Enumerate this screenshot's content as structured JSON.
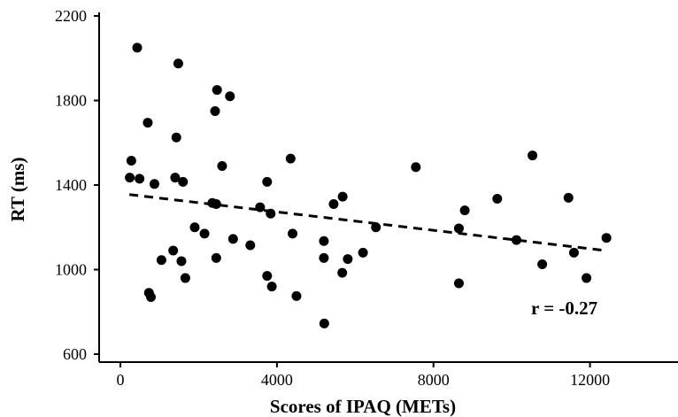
{
  "chart_data": {
    "type": "scatter",
    "title": "",
    "xlabel": "Scores of IPAQ (METs)",
    "ylabel": "RT (ms)",
    "xlim": [
      0,
      14000
    ],
    "ylim": [
      600,
      2200
    ],
    "xticks": [
      0,
      4000,
      8000,
      12000
    ],
    "xtick_labels": [
      "0",
      "4000",
      "8000",
      "12000"
    ],
    "yticks": [
      600,
      1000,
      1400,
      1800,
      2200
    ],
    "ytick_labels": [
      "600",
      "1000",
      "1400",
      "1800",
      "2200"
    ],
    "grid": false,
    "legend": "none",
    "point_color": "#000000",
    "series": [
      {
        "points": [
          [
            280,
            1515
          ],
          [
            240,
            1435
          ],
          [
            490,
            1430
          ],
          [
            870,
            1405
          ],
          [
            430,
            2050
          ],
          [
            700,
            1695
          ],
          [
            730,
            890
          ],
          [
            780,
            870
          ],
          [
            1050,
            1045
          ],
          [
            1480,
            1975
          ],
          [
            1430,
            1625
          ],
          [
            1400,
            1435
          ],
          [
            1600,
            1415
          ],
          [
            1350,
            1090
          ],
          [
            1560,
            1040
          ],
          [
            1660,
            960
          ],
          [
            1900,
            1200
          ],
          [
            2150,
            1170
          ],
          [
            2350,
            1315
          ],
          [
            2450,
            1310
          ],
          [
            2420,
            1750
          ],
          [
            2470,
            1850
          ],
          [
            2800,
            1820
          ],
          [
            2600,
            1490
          ],
          [
            2880,
            1145
          ],
          [
            2450,
            1055
          ],
          [
            3320,
            1115
          ],
          [
            3570,
            1295
          ],
          [
            3750,
            1415
          ],
          [
            3840,
            1265
          ],
          [
            4350,
            1525
          ],
          [
            4400,
            1170
          ],
          [
            3750,
            970
          ],
          [
            3870,
            920
          ],
          [
            4500,
            875
          ],
          [
            5200,
            1135
          ],
          [
            5450,
            1310
          ],
          [
            5680,
            1345
          ],
          [
            5200,
            1055
          ],
          [
            5810,
            1050
          ],
          [
            5670,
            985
          ],
          [
            5210,
            745
          ],
          [
            6200,
            1080
          ],
          [
            6530,
            1200
          ],
          [
            7550,
            1485
          ],
          [
            8650,
            1195
          ],
          [
            8800,
            1280
          ],
          [
            8650,
            935
          ],
          [
            9630,
            1335
          ],
          [
            10120,
            1140
          ],
          [
            10530,
            1540
          ],
          [
            10780,
            1025
          ],
          [
            11450,
            1340
          ],
          [
            11590,
            1080
          ],
          [
            11910,
            960
          ],
          [
            12420,
            1150
          ]
        ]
      }
    ],
    "trendline": {
      "style": "dashed",
      "x": [
        230,
        12400
      ],
      "y": [
        1355,
        1090
      ]
    },
    "annotation": {
      "text": "r = -0.27"
    }
  }
}
